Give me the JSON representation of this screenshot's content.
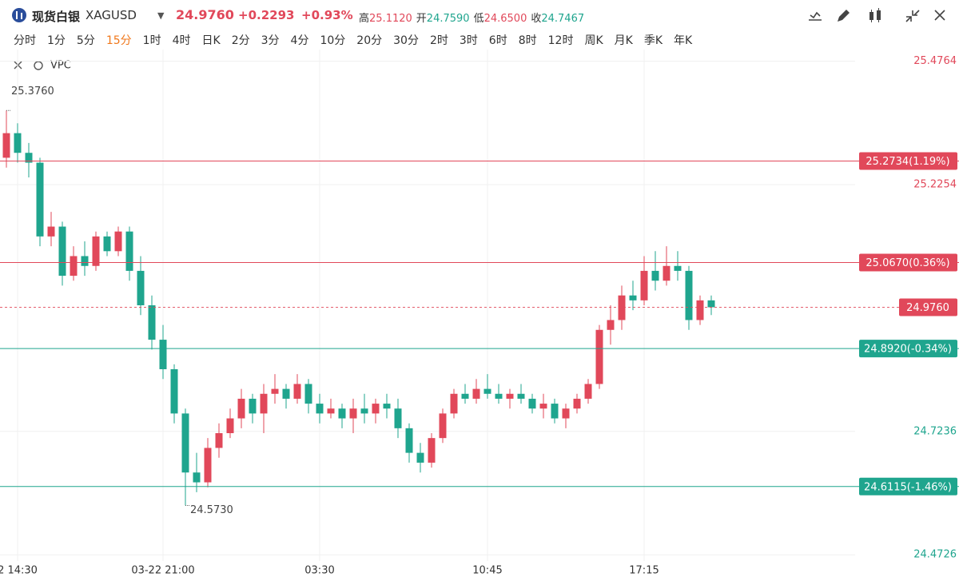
{
  "header": {
    "name": "现货白银",
    "symbol": "XAGUSD",
    "price": "24.9760",
    "change": "+0.2293",
    "change_pct": "+0.93%",
    "stats": [
      {
        "label": "高",
        "value": "25.1120"
      },
      {
        "label": "开",
        "value": "24.7590"
      },
      {
        "label": "低",
        "value": "24.6500"
      },
      {
        "label": "收",
        "value": "24.7467"
      }
    ]
  },
  "timeframes": [
    "分时",
    "1分",
    "5分",
    "15分",
    "1时",
    "4时",
    "日K",
    "2分",
    "3分",
    "4分",
    "10分",
    "20分",
    "30分",
    "2时",
    "3时",
    "6时",
    "8时",
    "12时",
    "周K",
    "月K",
    "季K",
    "年K"
  ],
  "active_timeframe": "15分",
  "indicator": "VPC",
  "chart_data": {
    "type": "candlestick",
    "up_color": "#e1485a",
    "down_color": "#1fa58e",
    "grid": true,
    "categories": [
      null,
      "2 14:30",
      null,
      null,
      null,
      null,
      null,
      null,
      null,
      null,
      null,
      null,
      null,
      null,
      "03-22 21:00",
      null,
      null,
      null,
      null,
      null,
      null,
      null,
      null,
      null,
      null,
      null,
      null,
      null,
      "03:30",
      null,
      null,
      null,
      null,
      null,
      null,
      null,
      null,
      null,
      null,
      null,
      null,
      null,
      null,
      "10:45",
      null,
      null,
      null,
      null,
      null,
      null,
      null,
      null,
      null,
      null,
      null,
      null,
      null,
      "17:15",
      null,
      null,
      null,
      null,
      null,
      null
    ],
    "open": [
      25.28,
      25.33,
      25.29,
      25.27,
      25.12,
      25.14,
      25.04,
      25.08,
      25.06,
      25.12,
      25.09,
      25.13,
      25.05,
      24.98,
      24.91,
      24.85,
      24.76,
      24.64,
      24.62,
      24.69,
      24.72,
      24.75,
      24.79,
      24.76,
      24.8,
      24.81,
      24.79,
      24.82,
      24.78,
      24.76,
      24.77,
      24.75,
      24.77,
      24.76,
      24.78,
      24.77,
      24.73,
      24.68,
      24.66,
      24.71,
      24.76,
      24.8,
      24.79,
      24.81,
      24.8,
      24.79,
      24.8,
      24.79,
      24.77,
      24.78,
      24.75,
      24.77,
      24.79,
      24.82,
      24.93,
      24.95,
      25.0,
      24.99,
      25.05,
      25.03,
      25.06,
      25.05,
      24.95,
      24.99
    ],
    "high": [
      25.376,
      25.35,
      25.31,
      25.28,
      25.17,
      25.15,
      25.1,
      25.11,
      25.13,
      25.13,
      25.14,
      25.14,
      25.08,
      25.0,
      24.94,
      24.86,
      24.77,
      24.68,
      24.71,
      24.74,
      24.77,
      24.81,
      24.8,
      24.82,
      24.84,
      24.82,
      24.84,
      24.83,
      24.8,
      24.79,
      24.78,
      24.79,
      24.8,
      24.79,
      24.8,
      24.79,
      24.74,
      24.7,
      24.72,
      24.77,
      24.81,
      24.82,
      24.83,
      24.84,
      24.82,
      24.81,
      24.82,
      24.8,
      24.8,
      24.79,
      24.78,
      24.8,
      24.83,
      24.94,
      24.98,
      25.02,
      25.03,
      25.08,
      25.09,
      25.1,
      25.09,
      25.06,
      25.0,
      25.0
    ],
    "low": [
      25.26,
      25.27,
      25.24,
      25.1,
      25.1,
      25.02,
      25.03,
      25.04,
      25.05,
      25.08,
      25.08,
      25.03,
      24.96,
      24.89,
      24.83,
      24.74,
      24.573,
      24.6,
      24.61,
      24.67,
      24.71,
      24.73,
      24.74,
      24.72,
      24.78,
      24.77,
      24.78,
      24.76,
      24.74,
      24.75,
      24.73,
      24.72,
      24.74,
      24.74,
      24.75,
      24.71,
      24.66,
      24.64,
      24.65,
      24.7,
      24.75,
      24.78,
      24.78,
      24.79,
      24.78,
      24.77,
      24.78,
      24.76,
      24.75,
      24.74,
      24.73,
      24.76,
      24.78,
      24.81,
      24.9,
      24.93,
      24.97,
      24.98,
      25.01,
      25.02,
      25.03,
      24.93,
      24.94,
      24.96
    ],
    "close": [
      25.33,
      25.29,
      25.27,
      25.12,
      25.14,
      25.04,
      25.08,
      25.06,
      25.12,
      25.09,
      25.13,
      25.05,
      24.98,
      24.91,
      24.85,
      24.76,
      24.64,
      24.62,
      24.69,
      24.72,
      24.75,
      24.79,
      24.76,
      24.8,
      24.81,
      24.79,
      24.82,
      24.78,
      24.76,
      24.77,
      24.75,
      24.77,
      24.76,
      24.78,
      24.77,
      24.73,
      24.68,
      24.66,
      24.71,
      24.76,
      24.8,
      24.79,
      24.81,
      24.8,
      24.79,
      24.8,
      24.79,
      24.77,
      24.78,
      24.75,
      24.77,
      24.79,
      24.82,
      24.93,
      24.95,
      25.0,
      24.99,
      25.05,
      25.03,
      25.06,
      25.05,
      24.95,
      24.99,
      24.976
    ],
    "ylim": [
      24.46,
      25.5
    ],
    "yticks": [
      24.4726,
      24.7236,
      25.2254,
      25.4764
    ],
    "price_lines": [
      {
        "value": 25.2734,
        "label": "25.2734(1.19%)",
        "color": "#e1485a"
      },
      {
        "value": 25.067,
        "label": "25.0670(0.36%)",
        "color": "#e1485a"
      },
      {
        "value": 24.892,
        "label": "24.8920(-0.34%)",
        "color": "#1fa58e"
      },
      {
        "value": 24.6115,
        "label": "24.6115(-1.46%)",
        "color": "#1fa58e"
      }
    ],
    "last_price": {
      "value": 24.976,
      "label": "24.9760",
      "color": "#e1485a"
    },
    "high_mark": {
      "index": 0,
      "value": 25.376,
      "label": "25.3760"
    },
    "low_mark": {
      "index": 16,
      "value": 24.573,
      "label": "24.5730"
    }
  }
}
